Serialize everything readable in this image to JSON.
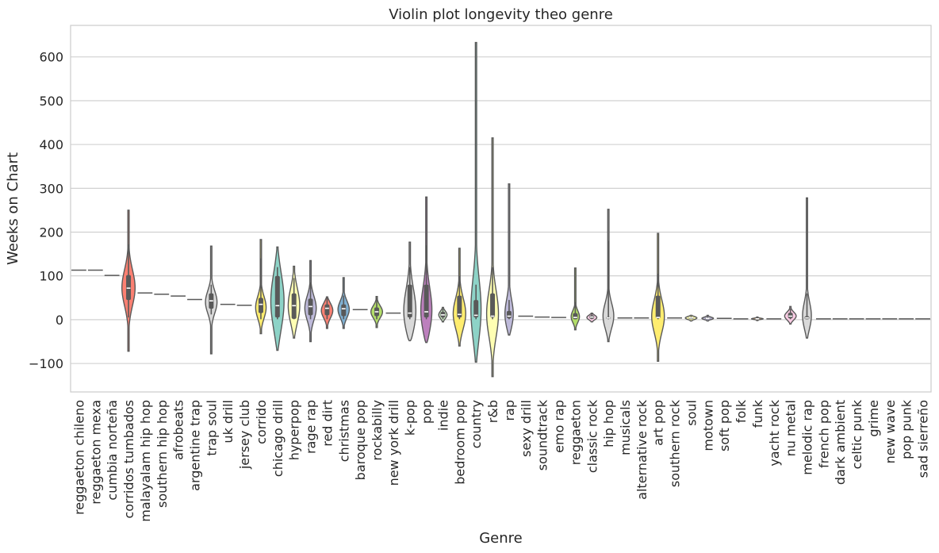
{
  "chart_data": {
    "type": "violin",
    "title": "Violin plot longevity theo genre",
    "xlabel": "Genre",
    "ylabel": "Weeks on Chart",
    "ylim": [
      -165,
      672
    ],
    "yticks": [
      -100,
      0,
      100,
      200,
      300,
      400,
      500,
      600
    ],
    "grid": "horizontal",
    "categories": [
      "reggaeton chileno",
      "reggaeton mexa",
      "cumbia norteña",
      "corridos tumbados",
      "malayalam hip hop",
      "southern hip hop",
      "afrobeats",
      "argentine trap",
      "trap soul",
      "uk drill",
      "jersey club",
      "corrido",
      "chicago drill",
      "hyperpop",
      "rage rap",
      "red dirt",
      "christmas",
      "baroque pop",
      "rockabilly",
      "new york drill",
      "k-pop",
      "pop",
      "indie",
      "bedroom pop",
      "country",
      "r&b",
      "rap",
      "sexy drill",
      "soundtrack",
      "emo rap",
      "reggaeton",
      "classic rock",
      "hip hop",
      "musicals",
      "alternative rock",
      "art pop",
      "southern rock",
      "soul",
      "motown",
      "soft pop",
      "folk",
      "funk",
      "yacht rock",
      "nu metal",
      "melodic rap",
      "french pop",
      "dark ambient",
      "celtic punk",
      "grime",
      "new wave",
      "pop punk",
      "sad sierreño"
    ],
    "violins": [
      {
        "color": "#8dd3c7",
        "type": "line",
        "value": 113
      },
      {
        "color": "#ffffb3",
        "type": "line",
        "value": 113
      },
      {
        "color": "#bebada",
        "type": "line",
        "value": 101
      },
      {
        "color": "#fb8072",
        "min": -72,
        "max": 250,
        "q1": 45,
        "median": 72,
        "q3": 102,
        "wl": 5,
        "wh": 172,
        "peak": 72,
        "width": 0.8
      },
      {
        "color": "#80b1d3",
        "type": "line",
        "value": 61
      },
      {
        "color": "#fdb462",
        "type": "line",
        "value": 58
      },
      {
        "color": "#b3de69",
        "type": "line",
        "value": 54
      },
      {
        "color": "#fccde5",
        "type": "line",
        "value": 46
      },
      {
        "color": "#d9d9d9",
        "min": -78,
        "max": 168,
        "q1": 25,
        "median": 43,
        "q3": 60,
        "wl": 12,
        "wh": 80,
        "peak": 40,
        "width": 0.7
      },
      {
        "color": "#bc80bd",
        "type": "line",
        "value": 35
      },
      {
        "color": "#ccebc5",
        "type": "line",
        "value": 33
      },
      {
        "color": "#ffed6f",
        "min": -32,
        "max": 183,
        "q1": 15,
        "median": 35,
        "q3": 50,
        "wl": 1,
        "wh": 140,
        "peak": 25,
        "width": 0.7
      },
      {
        "color": "#8dd3c7",
        "min": -70,
        "max": 166,
        "q1": 5,
        "median": 32,
        "q3": 100,
        "wl": 1,
        "wh": 120,
        "peak": 40,
        "width": 0.8
      },
      {
        "color": "#ffffb3",
        "min": -42,
        "max": 122,
        "q1": 2,
        "median": 32,
        "q3": 60,
        "wl": 1,
        "wh": 95,
        "peak": 30,
        "width": 0.7
      },
      {
        "color": "#bebada",
        "min": -50,
        "max": 135,
        "q1": 10,
        "median": 30,
        "q3": 48,
        "wl": 1,
        "wh": 85,
        "peak": 25,
        "width": 0.7
      },
      {
        "color": "#fb8072",
        "min": -20,
        "max": 52,
        "q1": 10,
        "median": 26,
        "q3": 35,
        "wl": 1,
        "wh": 50,
        "peak": 22,
        "width": 0.7
      },
      {
        "color": "#80b1d3",
        "min": -20,
        "max": 96,
        "q1": 8,
        "median": 25,
        "q3": 35,
        "wl": 1,
        "wh": 55,
        "peak": 22,
        "width": 0.7
      },
      {
        "color": "#fdb462",
        "type": "line",
        "value": 23
      },
      {
        "color": "#b3de69",
        "min": -18,
        "max": 53,
        "q1": 8,
        "median": 18,
        "q3": 28,
        "wl": 1,
        "wh": 50,
        "peak": 18,
        "width": 0.7
      },
      {
        "color": "#fccde5",
        "type": "line",
        "value": 15
      },
      {
        "color": "#d9d9d9",
        "min": -48,
        "max": 177,
        "q1": 5,
        "median": 15,
        "q3": 80,
        "wl": 1,
        "wh": 120,
        "peak": 10,
        "width": 0.8
      },
      {
        "color": "#bc80bd",
        "min": -52,
        "max": 280,
        "q1": 5,
        "median": 18,
        "q3": 80,
        "wl": 1,
        "wh": 170,
        "peak": 10,
        "width": 0.8
      },
      {
        "color": "#ccebc5",
        "min": -5,
        "max": 28,
        "q1": 5,
        "median": 11,
        "q3": 18,
        "wl": 1,
        "wh": 25,
        "peak": 11,
        "width": 0.5
      },
      {
        "color": "#ffed6f",
        "min": -60,
        "max": 163,
        "q1": 5,
        "median": 12,
        "q3": 55,
        "wl": 1,
        "wh": 100,
        "peak": 10,
        "width": 0.8
      },
      {
        "color": "#8dd3c7",
        "min": -97,
        "max": 633,
        "q1": 5,
        "median": 10,
        "q3": 45,
        "wl": 1,
        "wh": 80,
        "peak": 10,
        "width": 0.8
      },
      {
        "color": "#ffffb3",
        "min": -130,
        "max": 415,
        "q1": 5,
        "median": 8,
        "q3": 60,
        "wl": 1,
        "wh": 120,
        "peak": 8,
        "width": 0.8
      },
      {
        "color": "#bebada",
        "min": -35,
        "max": 310,
        "q1": 3,
        "median": 8,
        "q3": 20,
        "wl": 1,
        "wh": 45,
        "peak": 5,
        "width": 0.7
      },
      {
        "color": "#fb8072",
        "type": "line",
        "value": 8
      },
      {
        "color": "#80b1d3",
        "type": "line",
        "value": 6
      },
      {
        "color": "#fdb462",
        "type": "line",
        "value": 5
      },
      {
        "color": "#b3de69",
        "min": -23,
        "max": 118,
        "q1": 1,
        "median": 5,
        "q3": 15,
        "wl": 1,
        "wh": 40,
        "peak": 5,
        "width": 0.6
      },
      {
        "color": "#fccde5",
        "min": -5,
        "max": 15,
        "q1": 2,
        "median": 6,
        "q3": 10,
        "wl": 1,
        "wh": 14,
        "peak": 5,
        "width": 0.6
      },
      {
        "color": "#d9d9d9",
        "min": -50,
        "max": 252,
        "q1": 2,
        "median": 4,
        "q3": 6,
        "wl": 1,
        "wh": 180,
        "peak": 4,
        "width": 0.8
      },
      {
        "color": "#bc80bd",
        "type": "line",
        "value": 4
      },
      {
        "color": "#ccebc5",
        "type": "line",
        "value": 4
      },
      {
        "color": "#ffed6f",
        "min": -95,
        "max": 197,
        "q1": 3,
        "median": 5,
        "q3": 55,
        "wl": 1,
        "wh": 105,
        "peak": 5,
        "width": 0.8
      },
      {
        "color": "#8dd3c7",
        "type": "line",
        "value": 4
      },
      {
        "color": "#ffffb3",
        "min": -3,
        "max": 10,
        "q1": 1,
        "median": 4,
        "q3": 6,
        "wl": 1,
        "wh": 8,
        "peak": 4,
        "width": 0.7
      },
      {
        "color": "#bebada",
        "min": -3,
        "max": 10,
        "q1": 1,
        "median": 3,
        "q3": 5,
        "wl": 1,
        "wh": 8,
        "peak": 3,
        "width": 0.7
      },
      {
        "color": "#fb8072",
        "type": "line",
        "value": 3
      },
      {
        "color": "#80b1d3",
        "type": "line",
        "value": 2
      },
      {
        "color": "#fdb462",
        "min": -2,
        "max": 6,
        "q1": 1,
        "median": 2,
        "q3": 3,
        "wl": 1,
        "wh": 5,
        "peak": 2,
        "width": 0.7
      },
      {
        "color": "#b3de69",
        "type": "line",
        "value": 2
      },
      {
        "color": "#fccde5",
        "min": -10,
        "max": 30,
        "q1": 3,
        "median": 8,
        "q3": 16,
        "wl": 1,
        "wh": 25,
        "peak": 8,
        "width": 0.7
      },
      {
        "color": "#d9d9d9",
        "min": -42,
        "max": 278,
        "q1": 1,
        "median": 4,
        "q3": 8,
        "wl": 1,
        "wh": 60,
        "peak": 3,
        "width": 0.7
      },
      {
        "color": "#bc80bd",
        "type": "line",
        "value": 2
      },
      {
        "color": "#ccebc5",
        "type": "line",
        "value": 2
      },
      {
        "color": "#ffed6f",
        "type": "line",
        "value": 2
      },
      {
        "color": "#8dd3c7",
        "type": "line",
        "value": 2
      },
      {
        "color": "#ffffb3",
        "type": "line",
        "value": 2
      },
      {
        "color": "#bebada",
        "type": "line",
        "value": 2
      },
      {
        "color": "#fb8072",
        "type": "line",
        "value": 2
      }
    ]
  }
}
